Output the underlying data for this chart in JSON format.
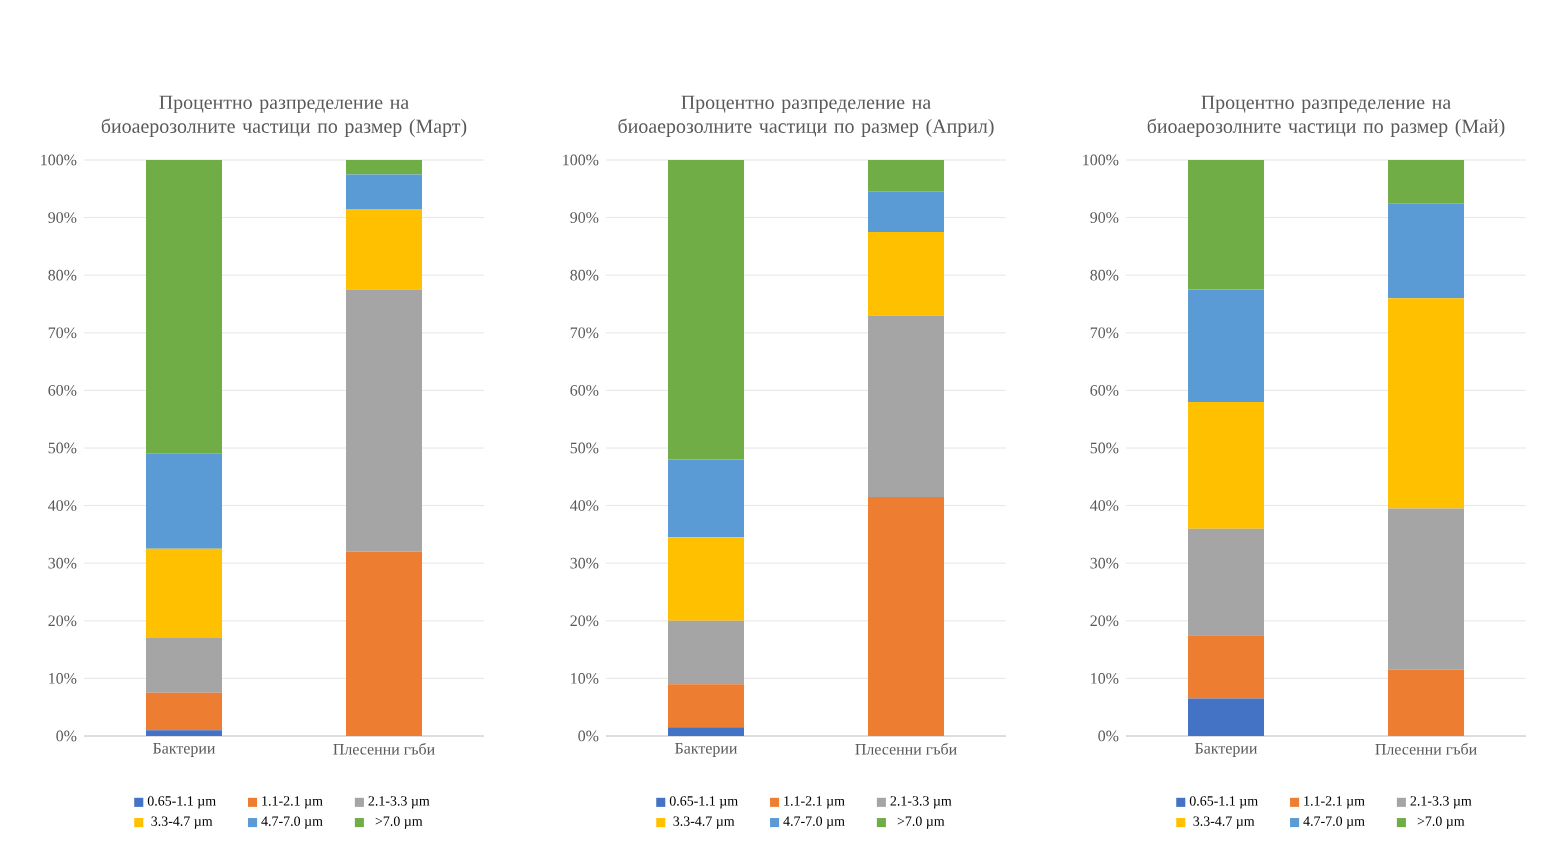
{
  "chart_data": [
    {
      "type": "bar",
      "stacked": true,
      "title": "Процентно разпределение на биоаерозолните частици по размер (Март)",
      "categories": [
        "Бактерии",
        "Плесенни гъби"
      ],
      "ylim": [
        0,
        100
      ],
      "yticks": [
        {
          "value": 0,
          "label": "0%"
        },
        {
          "value": 10,
          "label": "10%"
        },
        {
          "value": 20,
          "label": "20%"
        },
        {
          "value": 30,
          "label": "30%"
        },
        {
          "value": 40,
          "label": "40%"
        },
        {
          "value": 50,
          "label": "50%"
        },
        {
          "value": 60,
          "label": "60%"
        },
        {
          "value": 70,
          "label": "70%"
        },
        {
          "value": 80,
          "label": "80%"
        },
        {
          "value": 90,
          "label": "90%"
        },
        {
          "value": 100,
          "label": "100%"
        }
      ],
      "grid": "y",
      "legend": "bottom",
      "series": [
        {
          "name": "0.65-1.1 µm",
          "color": "#4472c4",
          "values": [
            1,
            0
          ]
        },
        {
          "name": "1.1-2.1 µm",
          "color": "#ed7d31",
          "values": [
            6.5,
            32
          ]
        },
        {
          "name": "2.1-3.3 µm",
          "color": "#a5a5a5",
          "values": [
            9.5,
            45.5
          ]
        },
        {
          "name": "3.3-4.7 µm",
          "color": "#ffc000",
          "values": [
            15.5,
            14
          ]
        },
        {
          "name": "4.7-7.0 µm",
          "color": "#5b9bd5",
          "values": [
            16.5,
            6
          ]
        },
        {
          "name": ">7.0 µm",
          "color": "#70ad47",
          "values": [
            51,
            2.5
          ]
        }
      ]
    },
    {
      "type": "bar",
      "stacked": true,
      "title": "Процентно разпределение на биоаерозолните частици по размер (Април)",
      "categories": [
        "Бактерии",
        "Плесенни гъби"
      ],
      "ylim": [
        0,
        100
      ],
      "yticks": [
        {
          "value": 0,
          "label": "0%"
        },
        {
          "value": 10,
          "label": "10%"
        },
        {
          "value": 20,
          "label": "20%"
        },
        {
          "value": 30,
          "label": "30%"
        },
        {
          "value": 40,
          "label": "40%"
        },
        {
          "value": 50,
          "label": "50%"
        },
        {
          "value": 60,
          "label": "60%"
        },
        {
          "value": 70,
          "label": "70%"
        },
        {
          "value": 80,
          "label": "80%"
        },
        {
          "value": 90,
          "label": "90%"
        },
        {
          "value": 100,
          "label": "100%"
        }
      ],
      "grid": "y",
      "legend": "bottom",
      "series": [
        {
          "name": "0.65-1.1 µm",
          "color": "#4472c4",
          "values": [
            1.5,
            0
          ]
        },
        {
          "name": "1.1-2.1 µm",
          "color": "#ed7d31",
          "values": [
            7.5,
            41.5
          ]
        },
        {
          "name": "2.1-3.3 µm",
          "color": "#a5a5a5",
          "values": [
            11,
            31.5
          ]
        },
        {
          "name": "3.3-4.7 µm",
          "color": "#ffc000",
          "values": [
            14.5,
            14.5
          ]
        },
        {
          "name": "4.7-7.0 µm",
          "color": "#5b9bd5",
          "values": [
            13.5,
            7
          ]
        },
        {
          "name": ">7.0 µm",
          "color": "#70ad47",
          "values": [
            52,
            5.5
          ]
        }
      ]
    },
    {
      "type": "bar",
      "stacked": true,
      "title": "Процентно разпределение на биоаерозолните частици по размер (Май)",
      "categories": [
        "Бактерии",
        "Плесенни гъби"
      ],
      "ylim": [
        0,
        100
      ],
      "yticks": [
        {
          "value": 0,
          "label": "0%"
        },
        {
          "value": 10,
          "label": "10%"
        },
        {
          "value": 20,
          "label": "20%"
        },
        {
          "value": 30,
          "label": "30%"
        },
        {
          "value": 40,
          "label": "40%"
        },
        {
          "value": 50,
          "label": "50%"
        },
        {
          "value": 60,
          "label": "60%"
        },
        {
          "value": 70,
          "label": "70%"
        },
        {
          "value": 80,
          "label": "80%"
        },
        {
          "value": 90,
          "label": "90%"
        },
        {
          "value": 100,
          "label": "100%"
        }
      ],
      "grid": "y",
      "legend": "bottom",
      "series": [
        {
          "name": "0.65-1.1 µm",
          "color": "#4472c4",
          "values": [
            6.5,
            0
          ]
        },
        {
          "name": "1.1-2.1 µm",
          "color": "#ed7d31",
          "values": [
            11,
            11.5
          ]
        },
        {
          "name": "2.1-3.3 µm",
          "color": "#a5a5a5",
          "values": [
            18.5,
            28
          ]
        },
        {
          "name": "3.3-4.7 µm",
          "color": "#ffc000",
          "values": [
            22,
            36.5
          ]
        },
        {
          "name": "4.7-7.0 µm",
          "color": "#5b9bd5",
          "values": [
            19.5,
            16.5
          ]
        },
        {
          "name": ">7.0 µm",
          "color": "#70ad47",
          "values": [
            22.5,
            7.5
          ]
        }
      ]
    }
  ]
}
